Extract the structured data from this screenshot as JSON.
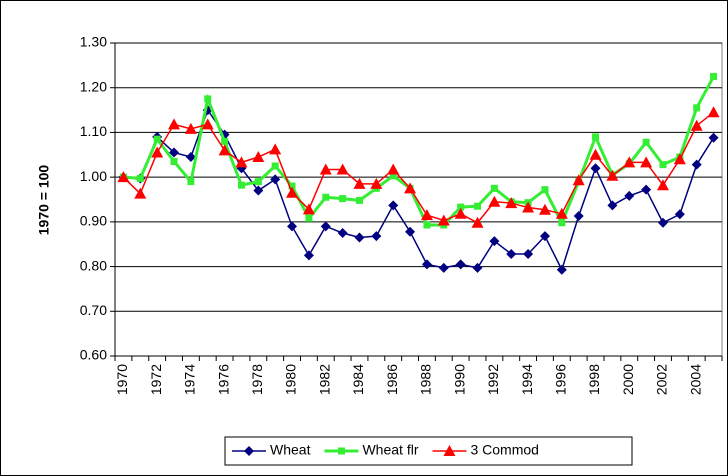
{
  "chart_data": {
    "type": "line",
    "y_label": "1970 = 100",
    "categories": [
      "1970",
      null,
      "1972",
      null,
      "1974",
      null,
      "1976",
      null,
      "1978",
      null,
      "1980",
      null,
      "1982",
      null,
      "1984",
      null,
      "1986",
      null,
      "1988",
      null,
      "1990",
      null,
      "1992",
      null,
      "1994",
      null,
      "1996",
      null,
      "1998",
      null,
      "2000",
      null,
      "2002",
      null,
      "2004",
      null
    ],
    "ylim": [
      0.6,
      1.3
    ],
    "yticks": [
      {
        "value": 0.6,
        "label": "0.60"
      },
      {
        "value": 0.7,
        "label": "0.70"
      },
      {
        "value": 0.8,
        "label": "0.80"
      },
      {
        "value": 0.9,
        "label": "0.90"
      },
      {
        "value": 1.0,
        "label": "1.00"
      },
      {
        "value": 1.1,
        "label": "1.10"
      },
      {
        "value": 1.2,
        "label": "1.20"
      },
      {
        "value": 1.3,
        "label": "1.30"
      }
    ],
    "grid": true,
    "legend": "bottom",
    "series": [
      {
        "name": "Wheat",
        "color": "#000080",
        "marker": "diamond",
        "values": [
          1.0,
          0.997,
          1.09,
          1.055,
          1.045,
          1.15,
          1.095,
          1.02,
          0.97,
          0.995,
          0.89,
          0.825,
          0.89,
          0.875,
          0.865,
          0.868,
          0.937,
          0.878,
          0.805,
          0.797,
          0.805,
          0.797,
          0.857,
          0.828,
          0.828,
          0.868,
          0.793,
          0.913,
          1.02,
          0.937,
          0.958,
          0.972,
          0.898,
          0.917,
          1.028,
          1.088
        ]
      },
      {
        "name": "Wheat flr",
        "color": "#33ee33",
        "marker": "square",
        "values": [
          1.0,
          0.997,
          1.085,
          1.035,
          0.99,
          1.175,
          1.08,
          0.982,
          0.99,
          1.025,
          0.98,
          0.908,
          0.955,
          0.952,
          0.948,
          0.975,
          1.003,
          0.975,
          0.893,
          0.893,
          0.933,
          0.935,
          0.975,
          0.945,
          0.943,
          0.972,
          0.898,
          0.99,
          1.09,
          1.005,
          1.03,
          1.078,
          1.028,
          1.045,
          1.155,
          1.225
        ]
      },
      {
        "name": "3 Commod",
        "color": "#ff0000",
        "marker": "triangle",
        "values": [
          1.0,
          0.963,
          1.055,
          1.118,
          1.108,
          1.118,
          1.06,
          1.033,
          1.045,
          1.062,
          0.965,
          0.928,
          1.017,
          1.017,
          0.985,
          0.985,
          1.017,
          0.975,
          0.915,
          0.903,
          0.918,
          0.898,
          0.945,
          0.942,
          0.932,
          0.927,
          0.918,
          0.993,
          1.05,
          1.003,
          1.033,
          1.033,
          0.982,
          1.04,
          1.115,
          1.145
        ]
      }
    ]
  }
}
